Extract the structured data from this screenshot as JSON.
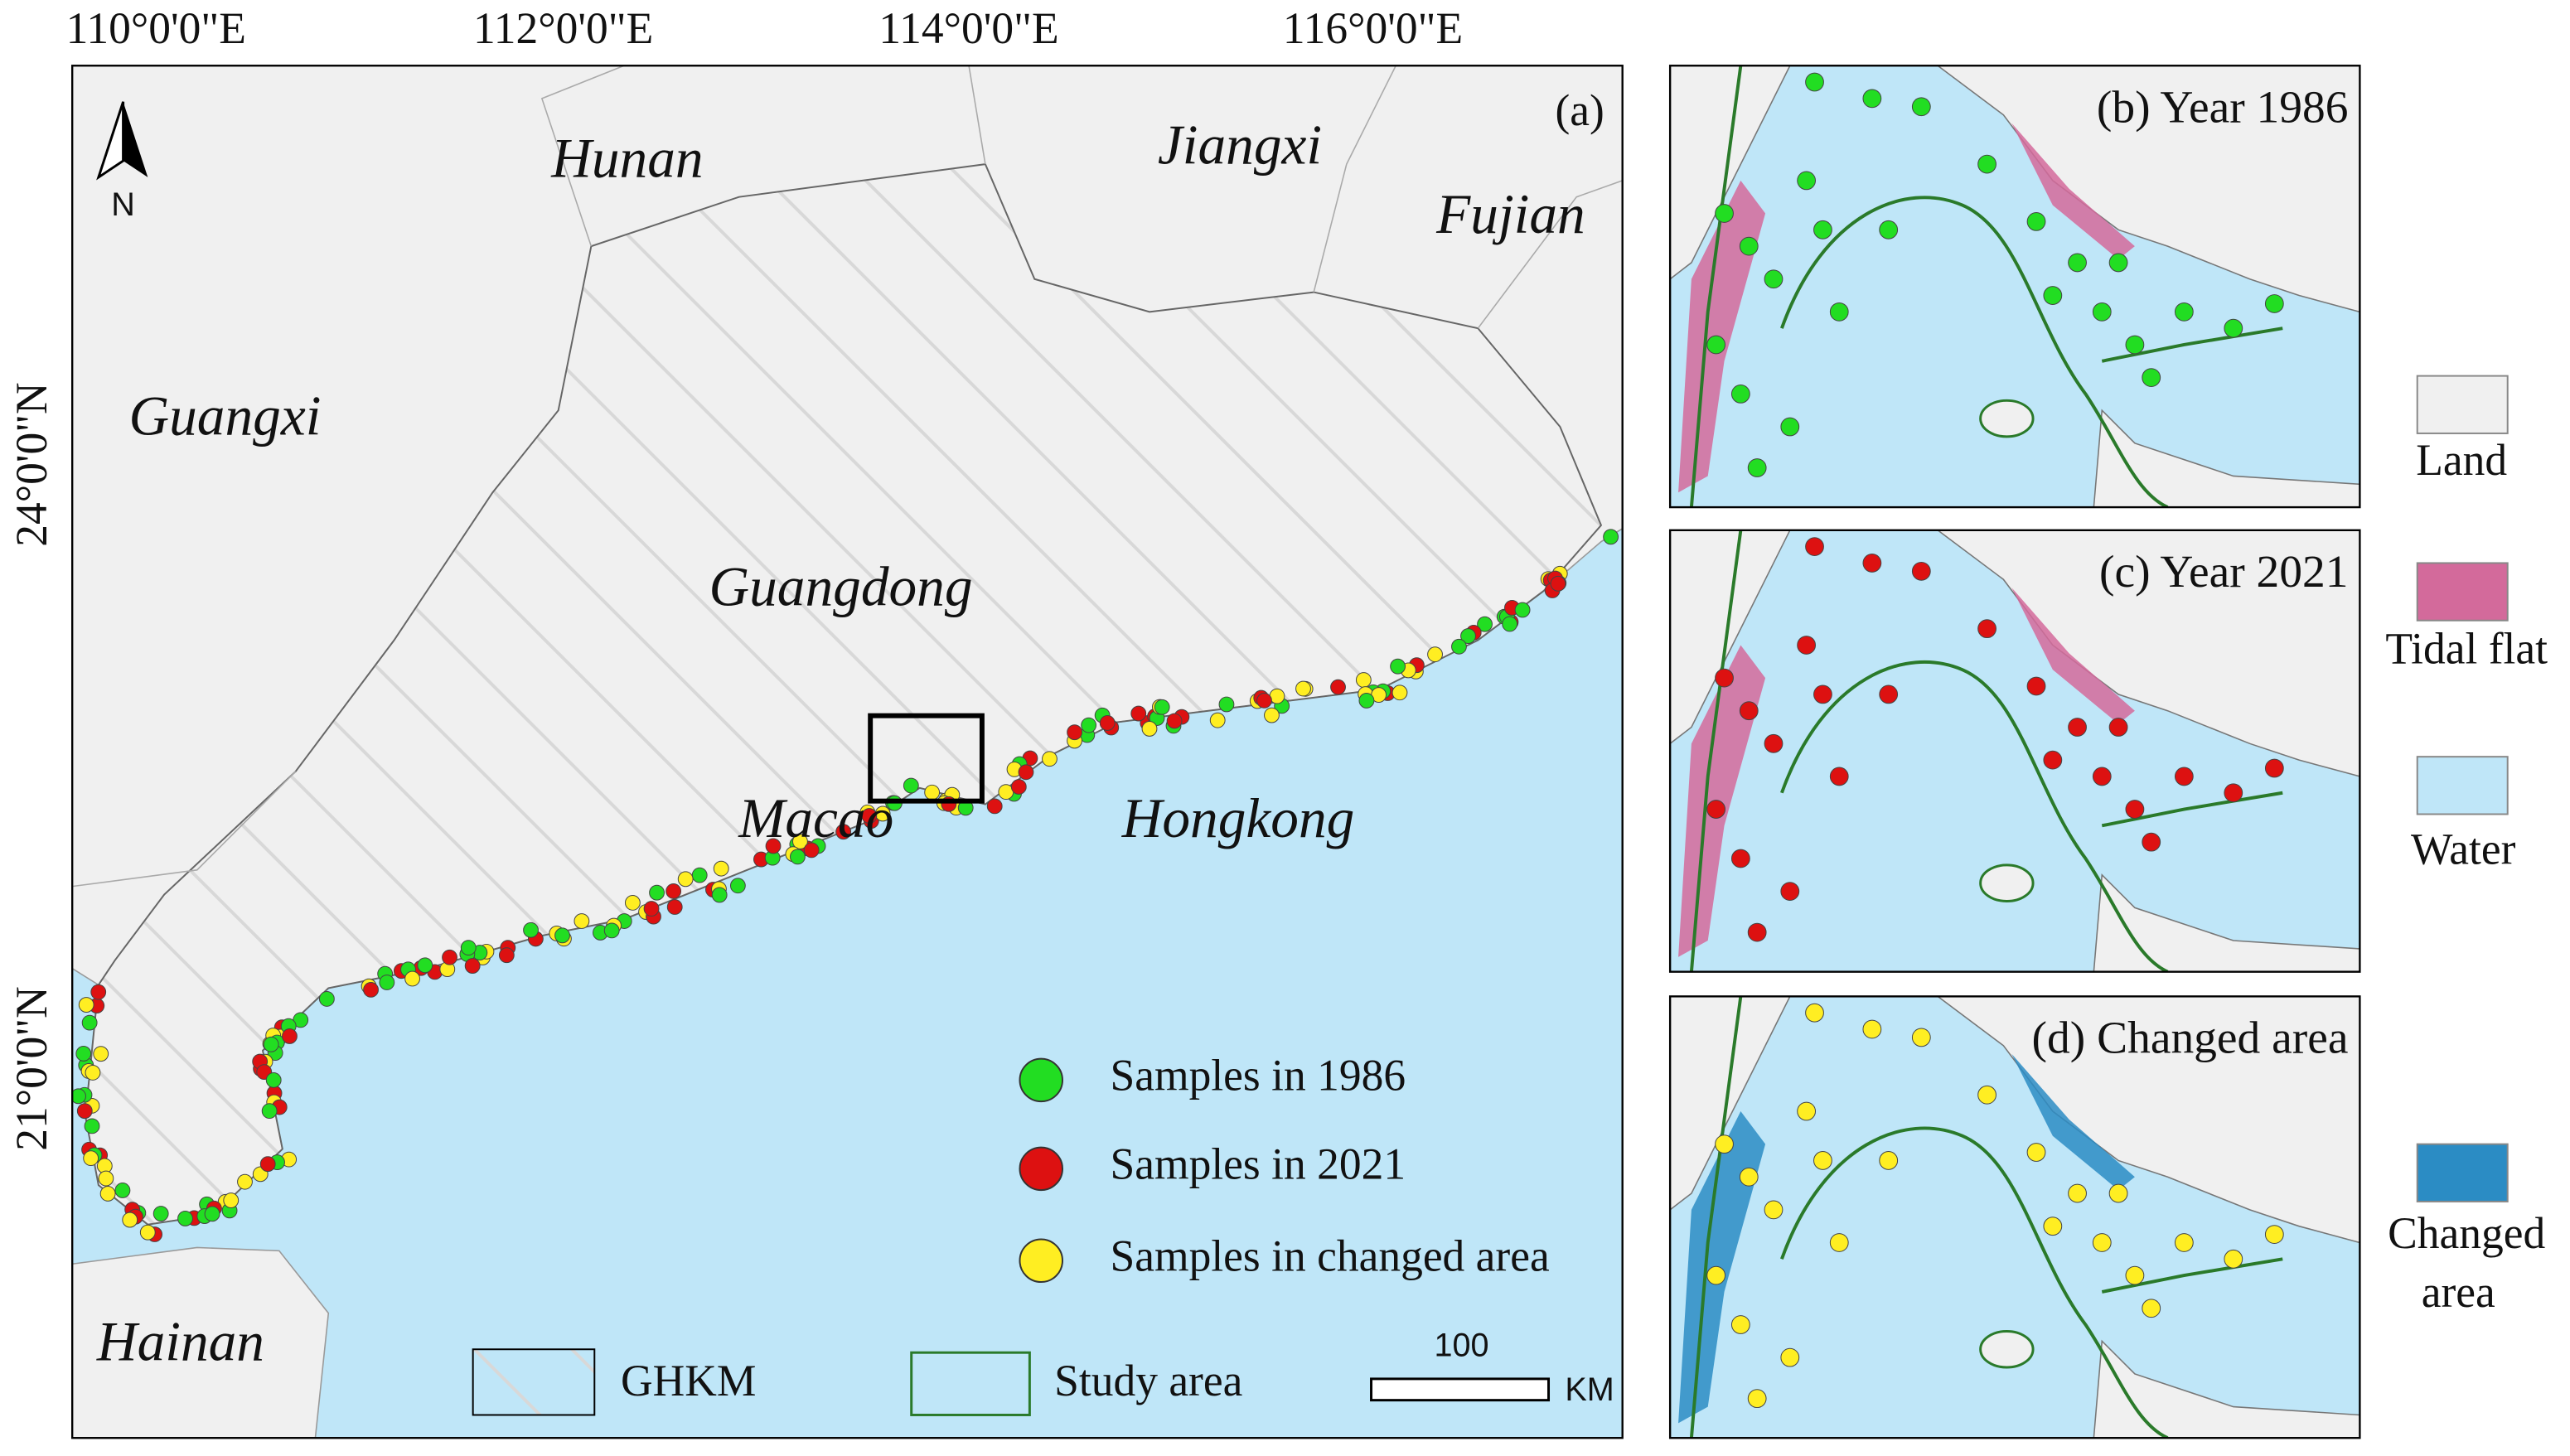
{
  "map": {
    "panel_label": "(a)",
    "north_label": "N",
    "lon_labels": [
      "110°0'0\"E",
      "112°0'0\"E",
      "114°0'0\"E",
      "116°0'0\"E"
    ],
    "lat_labels": [
      "24°0'0\"N",
      "21°0'0\"N"
    ],
    "regions": [
      "Hunan",
      "Jiangxi",
      "Fujian",
      "Guangxi",
      "Guangdong",
      "Macao",
      "Hongkong",
      "Hainan"
    ],
    "legend": {
      "samples": [
        "Samples in 1986",
        "Samples in 2021",
        "Samples in changed area"
      ],
      "areas": [
        "GHKM",
        "Study area"
      ]
    },
    "scale": {
      "distance": "100",
      "unit": "KM"
    }
  },
  "panels": [
    "(b) Year 1986",
    "(c) Year 2021",
    "(d) Changed area"
  ],
  "class_legend": {
    "land": "Land",
    "tidal_flat": "Tidal flat",
    "water": "Water",
    "changed_area": [
      "Changed",
      "area"
    ]
  }
}
